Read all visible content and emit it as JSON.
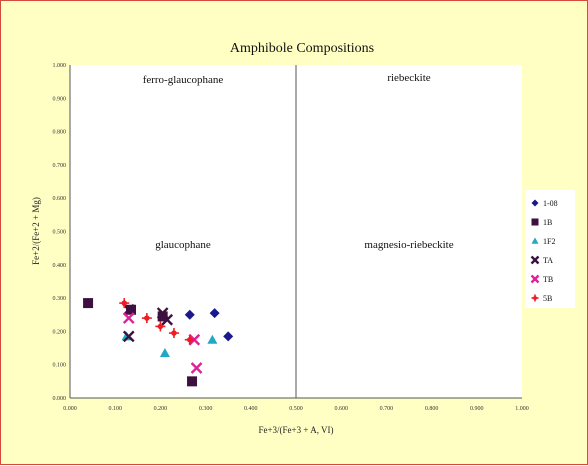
{
  "chart_data": {
    "type": "scatter",
    "title": "Amphibole Compositions",
    "xlabel": "Fe+3/(Fe+3 + A, VI)",
    "ylabel": "Fe+2/(Fe+2 + Mg)",
    "xlim": [
      0,
      1
    ],
    "ylim": [
      0,
      1
    ],
    "x_ticks": [
      "0.000",
      "0.100",
      "0.200",
      "0.300",
      "0.400",
      "0.500",
      "0.600",
      "0.700",
      "0.800",
      "0.900",
      "1.000"
    ],
    "y_ticks": [
      "0.000",
      "0.100",
      "0.200",
      "0.300",
      "0.400",
      "0.500",
      "0.600",
      "0.700",
      "0.800",
      "0.900",
      "1.000"
    ],
    "grid": false,
    "legend_position": "right",
    "regions": [
      {
        "label": "ferro-glaucophane"
      },
      {
        "label": "riebeckite"
      },
      {
        "label": "glaucophane"
      },
      {
        "label": "magnesio-riebeckite"
      }
    ],
    "series": [
      {
        "name": "1-08",
        "marker": "diamond",
        "color": "#1a1a8c",
        "points": [
          [
            0.265,
            0.25
          ],
          [
            0.32,
            0.255
          ],
          [
            0.35,
            0.185
          ]
        ]
      },
      {
        "name": "1B",
        "marker": "square",
        "color": "#3d1040",
        "points": [
          [
            0.04,
            0.285
          ],
          [
            0.135,
            0.265
          ],
          [
            0.205,
            0.245
          ],
          [
            0.27,
            0.05
          ]
        ]
      },
      {
        "name": "1F2",
        "marker": "triangle",
        "color": "#20a8c4",
        "points": [
          [
            0.125,
            0.185
          ],
          [
            0.21,
            0.135
          ],
          [
            0.315,
            0.175
          ]
        ]
      },
      {
        "name": "TA",
        "marker": "x",
        "color": "#3d1040",
        "points": [
          [
            0.13,
            0.265
          ],
          [
            0.205,
            0.255
          ],
          [
            0.215,
            0.235
          ],
          [
            0.13,
            0.185
          ]
        ]
      },
      {
        "name": "TB",
        "marker": "x",
        "color": "#e0209a",
        "points": [
          [
            0.13,
            0.24
          ],
          [
            0.275,
            0.175
          ],
          [
            0.28,
            0.09
          ]
        ]
      },
      {
        "name": "5B",
        "marker": "star",
        "color": "#ee1c24",
        "points": [
          [
            0.12,
            0.285
          ],
          [
            0.17,
            0.24
          ],
          [
            0.2,
            0.215
          ],
          [
            0.23,
            0.195
          ],
          [
            0.265,
            0.175
          ]
        ]
      }
    ]
  }
}
